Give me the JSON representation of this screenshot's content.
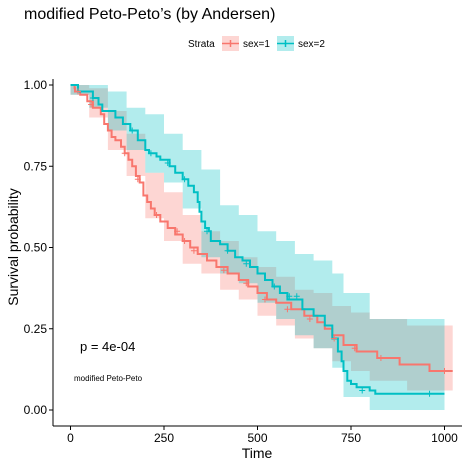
{
  "chart_data": {
    "type": "line",
    "title": "modified Peto-Peto’s (by Andersen)",
    "xlabel": "Time",
    "ylabel": "Survival probability",
    "xlim": [
      0,
      1022
    ],
    "ylim": [
      0,
      1
    ],
    "xticks": [
      "0",
      "250",
      "500",
      "750",
      "1000"
    ],
    "yticks": [
      "0.00",
      "0.25",
      "0.50",
      "0.75",
      "1.00"
    ],
    "legend": {
      "title": "Strata",
      "position": "top"
    },
    "annotations": {
      "pvalue": "p = 4e-04",
      "method": "modified Peto-Peto"
    },
    "series": [
      {
        "name": "sex=1",
        "color": "#F8766D",
        "steps": [
          [
            0,
            1.0
          ],
          [
            11,
            0.99
          ],
          [
            12,
            0.98
          ],
          [
            26,
            0.97
          ],
          [
            45,
            0.95
          ],
          [
            60,
            0.93
          ],
          [
            81,
            0.91
          ],
          [
            90,
            0.88
          ],
          [
            100,
            0.86
          ],
          [
            110,
            0.84
          ],
          [
            120,
            0.83
          ],
          [
            135,
            0.81
          ],
          [
            145,
            0.79
          ],
          [
            155,
            0.77
          ],
          [
            165,
            0.75
          ],
          [
            175,
            0.72
          ],
          [
            185,
            0.7
          ],
          [
            195,
            0.66
          ],
          [
            205,
            0.64
          ],
          [
            215,
            0.62
          ],
          [
            225,
            0.6
          ],
          [
            240,
            0.58
          ],
          [
            260,
            0.56
          ],
          [
            280,
            0.54
          ],
          [
            300,
            0.52
          ],
          [
            320,
            0.5
          ],
          [
            340,
            0.48
          ],
          [
            365,
            0.46
          ],
          [
            390,
            0.44
          ],
          [
            420,
            0.42
          ],
          [
            450,
            0.4
          ],
          [
            475,
            0.38
          ],
          [
            500,
            0.36
          ],
          [
            525,
            0.34
          ],
          [
            550,
            0.33
          ],
          [
            590,
            0.31
          ],
          [
            625,
            0.29
          ],
          [
            660,
            0.27
          ],
          [
            680,
            0.25
          ],
          [
            700,
            0.23
          ],
          [
            730,
            0.2
          ],
          [
            765,
            0.18
          ],
          [
            820,
            0.16
          ],
          [
            880,
            0.14
          ],
          [
            960,
            0.12
          ],
          [
            1022,
            0.12
          ]
        ],
        "lower": [
          [
            0,
            0.97
          ],
          [
            50,
            0.9
          ],
          [
            100,
            0.8
          ],
          [
            150,
            0.72
          ],
          [
            200,
            0.59
          ],
          [
            250,
            0.52
          ],
          [
            300,
            0.45
          ],
          [
            350,
            0.42
          ],
          [
            400,
            0.37
          ],
          [
            450,
            0.34
          ],
          [
            500,
            0.29
          ],
          [
            550,
            0.26
          ],
          [
            600,
            0.22
          ],
          [
            650,
            0.19
          ],
          [
            700,
            0.15
          ],
          [
            750,
            0.12
          ],
          [
            800,
            0.09
          ],
          [
            900,
            0.06
          ],
          [
            1022,
            0.04
          ]
        ],
        "upper": [
          [
            0,
            1.0
          ],
          [
            50,
            0.99
          ],
          [
            100,
            0.92
          ],
          [
            150,
            0.85
          ],
          [
            200,
            0.73
          ],
          [
            250,
            0.67
          ],
          [
            300,
            0.6
          ],
          [
            350,
            0.55
          ],
          [
            400,
            0.52
          ],
          [
            450,
            0.47
          ],
          [
            500,
            0.44
          ],
          [
            550,
            0.41
          ],
          [
            600,
            0.37
          ],
          [
            650,
            0.36
          ],
          [
            700,
            0.32
          ],
          [
            750,
            0.3
          ],
          [
            800,
            0.28
          ],
          [
            900,
            0.26
          ],
          [
            1022,
            0.26
          ]
        ],
        "censor": [
          [
            20,
            0.98
          ],
          [
            55,
            0.94
          ],
          [
            145,
            0.79
          ],
          [
            180,
            0.71
          ],
          [
            230,
            0.6
          ],
          [
            285,
            0.55
          ],
          [
            305,
            0.52
          ],
          [
            330,
            0.49
          ],
          [
            410,
            0.43
          ],
          [
            470,
            0.39
          ],
          [
            520,
            0.34
          ],
          [
            580,
            0.31
          ],
          [
            640,
            0.28
          ],
          [
            705,
            0.22
          ],
          [
            760,
            0.19
          ],
          [
            830,
            0.16
          ],
          [
            1000,
            0.12
          ]
        ]
      },
      {
        "name": "sex=2",
        "color": "#00BFC4",
        "steps": [
          [
            0,
            1.0
          ],
          [
            20,
            0.98
          ],
          [
            60,
            0.96
          ],
          [
            75,
            0.94
          ],
          [
            85,
            0.92
          ],
          [
            120,
            0.9
          ],
          [
            140,
            0.88
          ],
          [
            160,
            0.86
          ],
          [
            180,
            0.83
          ],
          [
            200,
            0.8
          ],
          [
            210,
            0.79
          ],
          [
            230,
            0.78
          ],
          [
            240,
            0.77
          ],
          [
            265,
            0.75
          ],
          [
            280,
            0.73
          ],
          [
            300,
            0.71
          ],
          [
            315,
            0.69
          ],
          [
            330,
            0.67
          ],
          [
            340,
            0.64
          ],
          [
            345,
            0.61
          ],
          [
            350,
            0.58
          ],
          [
            360,
            0.56
          ],
          [
            370,
            0.55
          ],
          [
            375,
            0.52
          ],
          [
            400,
            0.51
          ],
          [
            420,
            0.49
          ],
          [
            440,
            0.47
          ],
          [
            460,
            0.46
          ],
          [
            480,
            0.44
          ],
          [
            500,
            0.42
          ],
          [
            520,
            0.4
          ],
          [
            540,
            0.38
          ],
          [
            560,
            0.36
          ],
          [
            580,
            0.34
          ],
          [
            620,
            0.31
          ],
          [
            650,
            0.29
          ],
          [
            680,
            0.26
          ],
          [
            700,
            0.22
          ],
          [
            715,
            0.18
          ],
          [
            725,
            0.15
          ],
          [
            730,
            0.12
          ],
          [
            740,
            0.09
          ],
          [
            750,
            0.08
          ],
          [
            765,
            0.07
          ],
          [
            800,
            0.06
          ],
          [
            815,
            0.05
          ],
          [
            1000,
            0.05
          ]
        ],
        "lower": [
          [
            0,
            0.97
          ],
          [
            50,
            0.93
          ],
          [
            100,
            0.86
          ],
          [
            150,
            0.8
          ],
          [
            200,
            0.73
          ],
          [
            250,
            0.7
          ],
          [
            300,
            0.62
          ],
          [
            350,
            0.47
          ],
          [
            400,
            0.42
          ],
          [
            450,
            0.39
          ],
          [
            500,
            0.33
          ],
          [
            550,
            0.28
          ],
          [
            600,
            0.23
          ],
          [
            650,
            0.19
          ],
          [
            700,
            0.13
          ],
          [
            730,
            0.04
          ],
          [
            800,
            0.0
          ],
          [
            1000,
            0.0
          ]
        ],
        "upper": [
          [
            0,
            1.0
          ],
          [
            50,
            1.0
          ],
          [
            100,
            0.98
          ],
          [
            150,
            0.93
          ],
          [
            200,
            0.91
          ],
          [
            250,
            0.85
          ],
          [
            300,
            0.8
          ],
          [
            350,
            0.74
          ],
          [
            400,
            0.63
          ],
          [
            450,
            0.6
          ],
          [
            500,
            0.55
          ],
          [
            550,
            0.52
          ],
          [
            600,
            0.48
          ],
          [
            650,
            0.46
          ],
          [
            700,
            0.42
          ],
          [
            730,
            0.36
          ],
          [
            800,
            0.28
          ],
          [
            1000,
            0.28
          ]
        ],
        "censor": [
          [
            60,
            0.96
          ],
          [
            165,
            0.86
          ],
          [
            215,
            0.79
          ],
          [
            260,
            0.76
          ],
          [
            305,
            0.71
          ],
          [
            365,
            0.55
          ],
          [
            420,
            0.49
          ],
          [
            470,
            0.45
          ],
          [
            545,
            0.38
          ],
          [
            585,
            0.35
          ],
          [
            605,
            0.35
          ],
          [
            780,
            0.06
          ],
          [
            960,
            0.05
          ]
        ]
      }
    ]
  }
}
